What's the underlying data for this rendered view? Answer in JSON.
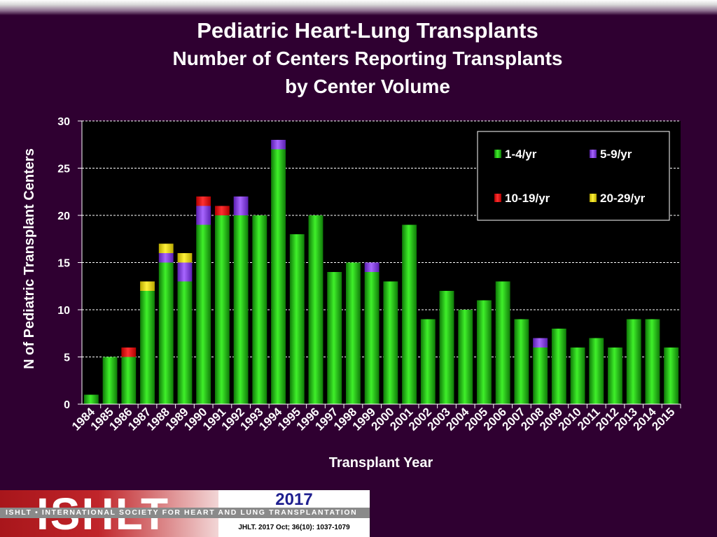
{
  "header": {
    "title": "Pediatric Heart-Lung Transplants",
    "subtitle_line1": "Number of Centers Reporting Transplants",
    "subtitle_line2": "by Center Volume"
  },
  "chart_data": {
    "type": "bar",
    "stacked": true,
    "title": "Pediatric Heart-Lung Transplants",
    "subtitle": "Number of Centers Reporting Transplants by Center Volume",
    "xlabel": "Transplant Year",
    "ylabel": "N of Pediatric Transplant Centers",
    "ylim": [
      0,
      30
    ],
    "yticks": [
      0,
      5,
      10,
      15,
      20,
      25,
      30
    ],
    "grid": "horizontal dashed",
    "legend_position": "top-right",
    "categories": [
      "1984",
      "1985",
      "1986",
      "1987",
      "1988",
      "1989",
      "1990",
      "1991",
      "1992",
      "1993",
      "1994",
      "1995",
      "1996",
      "1997",
      "1998",
      "1999",
      "2000",
      "2001",
      "2002",
      "2003",
      "2004",
      "2005",
      "2006",
      "2007",
      "2008",
      "2009",
      "2010",
      "2011",
      "2012",
      "2013",
      "2014",
      "2015"
    ],
    "series": [
      {
        "name": "1-4/yr",
        "color": "#22cc11",
        "values": [
          1,
          5,
          5,
          12,
          15,
          13,
          19,
          20,
          20,
          20,
          27,
          18,
          20,
          14,
          15,
          14,
          13,
          19,
          9,
          12,
          10,
          11,
          13,
          9,
          6,
          8,
          6,
          7,
          6,
          9,
          9,
          6
        ]
      },
      {
        "name": "5-9/yr",
        "color": "#8833ee",
        "values": [
          0,
          0,
          0,
          0,
          1,
          2,
          2,
          0,
          2,
          0,
          1,
          0,
          0,
          0,
          0,
          1,
          0,
          0,
          0,
          0,
          0,
          0,
          0,
          0,
          1,
          0,
          0,
          0,
          0,
          0,
          0,
          0
        ]
      },
      {
        "name": "10-19/yr",
        "color": "#ee1111",
        "values": [
          0,
          0,
          1,
          0,
          0,
          0,
          1,
          1,
          0,
          0,
          0,
          0,
          0,
          0,
          0,
          0,
          0,
          0,
          0,
          0,
          0,
          0,
          0,
          0,
          0,
          0,
          0,
          0,
          0,
          0,
          0,
          0
        ]
      },
      {
        "name": "20-29/yr",
        "color": "#eedd00",
        "values": [
          0,
          0,
          0,
          1,
          1,
          1,
          0,
          0,
          0,
          0,
          0,
          0,
          0,
          0,
          0,
          0,
          0,
          0,
          0,
          0,
          0,
          0,
          0,
          0,
          0,
          0,
          0,
          0,
          0,
          0,
          0,
          0
        ]
      }
    ]
  },
  "footer": {
    "logo_text": "ISHLT",
    "org_name": "ISHLT • INTERNATIONAL SOCIETY FOR HEART AND LUNG TRANSPLANTATION",
    "year": "2017",
    "citation": "JHLT. 2017 Oct; 36(10): 1037-1079"
  }
}
